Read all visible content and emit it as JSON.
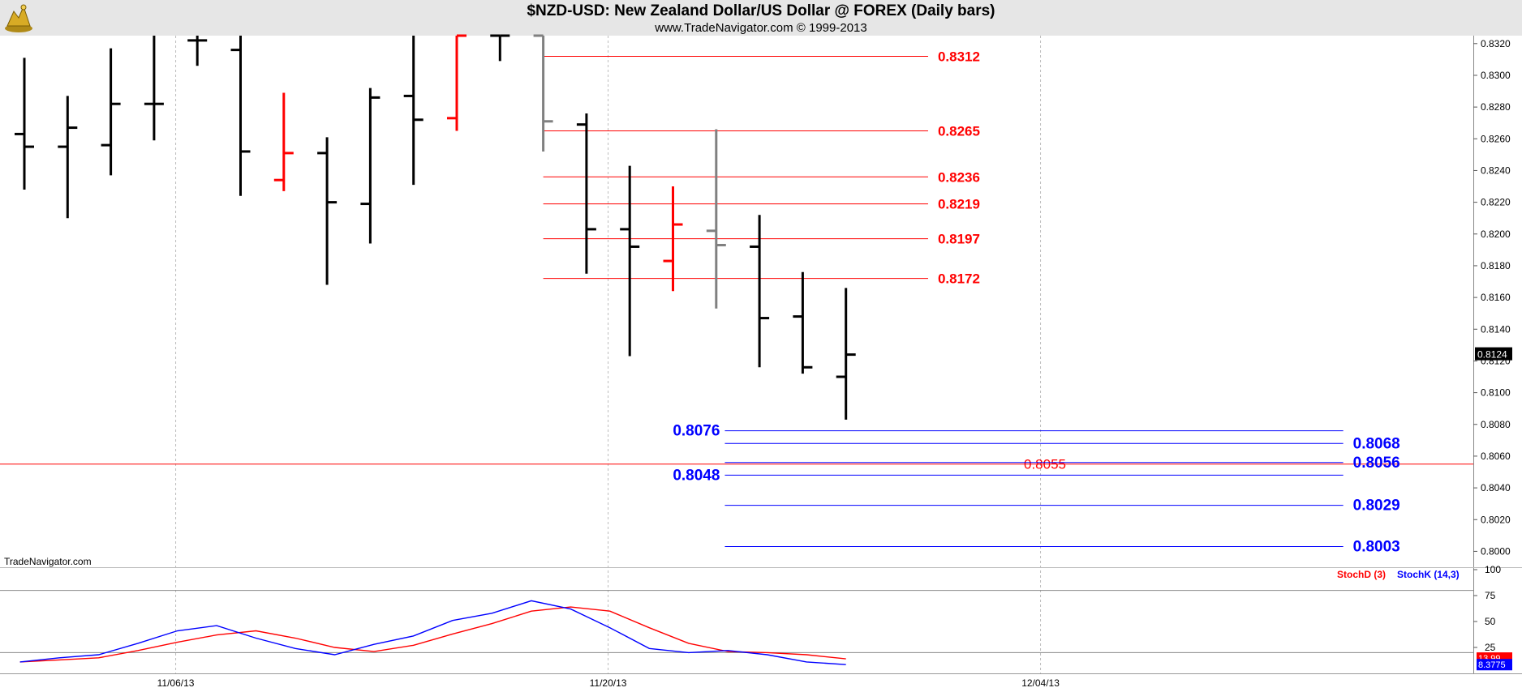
{
  "header": {
    "title": "$NZD-USD:  New Zealand Dollar/US Dollar @ FOREX  (Daily bars)",
    "subtitle": "www.TradeNavigator.com © 1999-2013"
  },
  "watermark": "TradeNavigator.com",
  "chart_data": [
    {
      "type": "ohlc",
      "y_ticks": [
        "0.8000",
        "0.8020",
        "0.8040",
        "0.8060",
        "0.8080",
        "0.8100",
        "0.8120",
        "0.8140",
        "0.8160",
        "0.8180",
        "0.8200",
        "0.8220",
        "0.8240",
        "0.8260",
        "0.8280",
        "0.8300",
        "0.8320"
      ],
      "x_ticks": [
        {
          "label": "11/06/13",
          "index": 3.5
        },
        {
          "label": "11/20/13",
          "index": 13.5
        },
        {
          "label": "12/04/13",
          "index": 23.5
        }
      ],
      "ylim": [
        0.799,
        0.8325
      ],
      "last_price": "0.8124",
      "bars": [
        {
          "o": 0.8263,
          "h": 0.8311,
          "l": 0.8228,
          "c": 0.8255,
          "color": "#000000"
        },
        {
          "o": 0.8255,
          "h": 0.8287,
          "l": 0.821,
          "c": 0.8267,
          "color": "#000000"
        },
        {
          "o": 0.8256,
          "h": 0.8317,
          "l": 0.8237,
          "c": 0.8282,
          "color": "#000000"
        },
        {
          "o": 0.8282,
          "h": 0.8325,
          "l": 0.8259,
          "c": 0.8282,
          "color": "#000000"
        },
        {
          "o": 0.8322,
          "h": 0.8325,
          "l": 0.8306,
          "c": 0.8322,
          "color": "#000000"
        },
        {
          "o": 0.8316,
          "h": 0.8325,
          "l": 0.8224,
          "c": 0.8252,
          "color": "#000000"
        },
        {
          "o": 0.8234,
          "h": 0.8289,
          "l": 0.8227,
          "c": 0.8251,
          "color": "#ff0000"
        },
        {
          "o": 0.8251,
          "h": 0.8261,
          "l": 0.8168,
          "c": 0.822,
          "color": "#000000"
        },
        {
          "o": 0.8219,
          "h": 0.8292,
          "l": 0.8194,
          "c": 0.8286,
          "color": "#000000"
        },
        {
          "o": 0.8287,
          "h": 0.8325,
          "l": 0.8231,
          "c": 0.8272,
          "color": "#000000"
        },
        {
          "o": 0.8273,
          "h": 0.8325,
          "l": 0.8265,
          "c": 0.8325,
          "color": "#ff0000"
        },
        {
          "o": 0.8325,
          "h": 0.8325,
          "l": 0.8309,
          "c": 0.8325,
          "color": "#000000"
        },
        {
          "o": 0.8325,
          "h": 0.8325,
          "l": 0.8252,
          "c": 0.8271,
          "color": "#808080"
        },
        {
          "o": 0.8269,
          "h": 0.8276,
          "l": 0.8175,
          "c": 0.8203,
          "color": "#000000"
        },
        {
          "o": 0.8203,
          "h": 0.8243,
          "l": 0.8123,
          "c": 0.8192,
          "color": "#000000"
        },
        {
          "o": 0.8183,
          "h": 0.823,
          "l": 0.8164,
          "c": 0.8206,
          "color": "#ff0000"
        },
        {
          "o": 0.8202,
          "h": 0.8266,
          "l": 0.8153,
          "c": 0.8193,
          "color": "#808080"
        },
        {
          "o": 0.8192,
          "h": 0.8212,
          "l": 0.8116,
          "c": 0.8147,
          "color": "#000000"
        },
        {
          "o": 0.8148,
          "h": 0.8176,
          "l": 0.8112,
          "c": 0.8116,
          "color": "#000000"
        },
        {
          "o": 0.811,
          "h": 0.8166,
          "l": 0.8083,
          "c": 0.8124,
          "color": "#000000"
        }
      ],
      "levels": [
        {
          "value": 0.8312,
          "label": "0.8312",
          "color": "#ff0000",
          "from_index": 12,
          "to_index": 20.9,
          "label_side": "right"
        },
        {
          "value": 0.8265,
          "label": "0.8265",
          "color": "#ff0000",
          "from_index": 12,
          "to_index": 20.9,
          "label_side": "right"
        },
        {
          "value": 0.8236,
          "label": "0.8236",
          "color": "#ff0000",
          "from_index": 12,
          "to_index": 20.9,
          "label_side": "right"
        },
        {
          "value": 0.8219,
          "label": "0.8219",
          "color": "#ff0000",
          "from_index": 12,
          "to_index": 20.9,
          "label_side": "right"
        },
        {
          "value": 0.8197,
          "label": "0.8197",
          "color": "#ff0000",
          "from_index": 12,
          "to_index": 20.9,
          "label_side": "right"
        },
        {
          "value": 0.8172,
          "label": "0.8172",
          "color": "#ff0000",
          "from_index": 12,
          "to_index": 20.9,
          "label_side": "right"
        },
        {
          "value": 0.8076,
          "label": "0.8076",
          "color": "#0000ff",
          "from_index": 16.2,
          "to_index": 30.5,
          "label_side": "left"
        },
        {
          "value": 0.8068,
          "label": "0.8068",
          "color": "#0000ff",
          "from_index": 16.2,
          "to_index": 30.5,
          "label_side": "right"
        },
        {
          "value": 0.8056,
          "label": "0.8056",
          "color": "#0000ff",
          "from_index": 16.2,
          "to_index": 30.5,
          "label_side": "right"
        },
        {
          "value": 0.8048,
          "label": "0.8048",
          "color": "#0000ff",
          "from_index": 16.2,
          "to_index": 30.5,
          "label_side": "left"
        },
        {
          "value": 0.8029,
          "label": "0.8029",
          "color": "#0000ff",
          "from_index": 16.2,
          "to_index": 30.5,
          "label_side": "right"
        },
        {
          "value": 0.8003,
          "label": "0.8003",
          "color": "#0000ff",
          "from_index": 16.2,
          "to_index": 30.5,
          "label_side": "right"
        }
      ],
      "horizontal_line": {
        "value": 0.8055,
        "label": "0.8055",
        "color": "#ff0000"
      },
      "colors": {
        "level_red": "#ff0000",
        "level_blue": "#0000ff",
        "neutral_bar": "#808080"
      }
    },
    {
      "type": "line",
      "title": "",
      "ylim": [
        0,
        100
      ],
      "y_ticks": [
        "25",
        "50",
        "75",
        "100"
      ],
      "reference_lines": [
        20,
        80
      ],
      "series": [
        {
          "name": "StochD (3)",
          "color": "#ff0000",
          "last_label": "13.99",
          "values": [
            11,
            13,
            15,
            22,
            30,
            37,
            41,
            34,
            25,
            21,
            27,
            38,
            48,
            60,
            64,
            60,
            44,
            29,
            21,
            20,
            18,
            14
          ]
        },
        {
          "name": "StochK (14,3)",
          "color": "#0000ff",
          "last_label": "8.3775",
          "values": [
            11,
            15,
            18,
            29,
            41,
            46,
            34,
            24,
            18,
            28,
            36,
            51,
            58,
            70,
            62,
            44,
            24,
            20,
            22,
            18,
            11,
            8.4
          ]
        }
      ]
    }
  ]
}
